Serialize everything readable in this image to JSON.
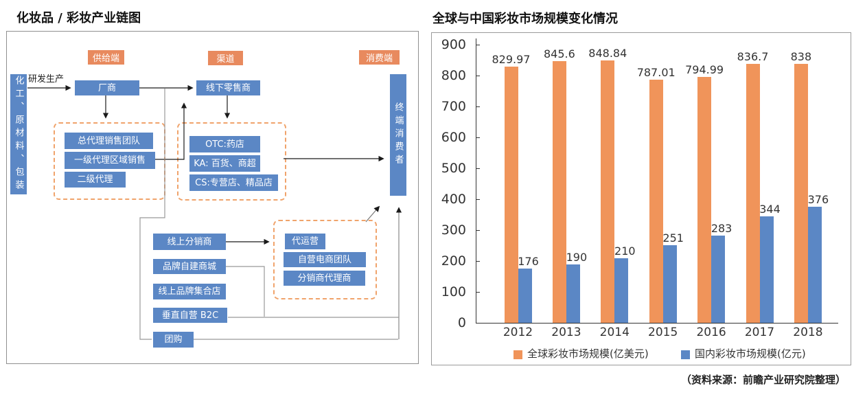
{
  "diagram": {
    "title": "化妆品 / 彩妆产业链图",
    "stages": [
      {
        "label": "供给端"
      },
      {
        "label": "渠道"
      },
      {
        "label": "消费端"
      }
    ],
    "rnd_label": "研发生产",
    "nodes": {
      "raw_material": "化工、原材料、包装",
      "manufacturer": "厂商",
      "offline_retailer": "线下零售商",
      "end_consumer": "终端消费者",
      "general_agent": "总代理销售团队",
      "regional_agent": "一级代理区域销售",
      "second_agent": "二级代理",
      "otc": "OTC:药店",
      "ka": "KA: 百货、商超",
      "cs": "CS:专营店、精品店",
      "online_distributor": "线上分销商",
      "brand_mall": "品牌自建商城",
      "online_brand_store": "线上品牌集合店",
      "vertical_b2c": "垂直自营 B2C",
      "group_buying": "团购",
      "agent_operation": "代运营",
      "self_ecommerce_team": "自营电商团队",
      "distributor_agents": "分销商代理商"
    }
  },
  "chart_title": "全球与中国彩妆市场规模变化情况",
  "source_note": "（资料来源：前瞻产业研究院整理）",
  "colors": {
    "global_series": "#F0945A",
    "china_series": "#5B87C5",
    "stage_label_bg": "#E88A5E",
    "node_bg": "#5B87C5",
    "dashed_border": "#F0A36B"
  },
  "chart_data": {
    "type": "bar",
    "title": "全球与中国彩妆市场规模变化情况",
    "categories": [
      "2012",
      "2013",
      "2014",
      "2015",
      "2016",
      "2017",
      "2018"
    ],
    "series": [
      {
        "name": "全球彩妆市场规模(亿美元)",
        "color": "#F0945A",
        "values": [
          829.97,
          845.6,
          848.84,
          787.01,
          794.99,
          836.7,
          838
        ]
      },
      {
        "name": "国内彩妆市场规模(亿元)",
        "color": "#5B87C5",
        "values": [
          176,
          190,
          210,
          251,
          283,
          344,
          376
        ]
      }
    ],
    "ylim": [
      0,
      900
    ],
    "ytick_step": 100,
    "grid": false,
    "legend_position": "bottom",
    "source": "（资料来源：前瞻产业研究院整理）"
  }
}
